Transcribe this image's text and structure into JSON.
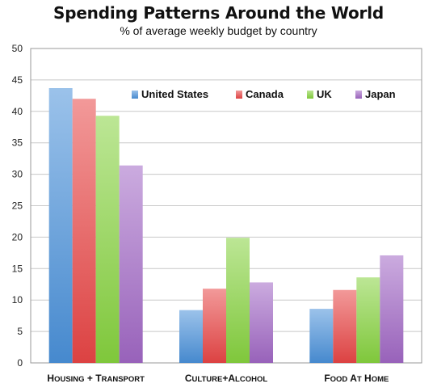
{
  "chart_data": {
    "type": "bar",
    "title": "Spending Patterns Around the World",
    "subtitle": "% of average weekly budget by country",
    "categories": [
      "Housing + Transport",
      "Culture+Alcohol",
      "Food at Home"
    ],
    "series": [
      {
        "name": "United States",
        "values": [
          43.7,
          8.4,
          8.6
        ],
        "color": "#4a90d9"
      },
      {
        "name": "Canada",
        "values": [
          42.0,
          11.8,
          11.6
        ],
        "color": "#e84545"
      },
      {
        "name": "UK",
        "values": [
          39.3,
          19.9,
          13.6
        ],
        "color": "#86d13e"
      },
      {
        "name": "Japan",
        "values": [
          31.4,
          12.8,
          17.1
        ],
        "color": "#a067c4"
      }
    ],
    "ylim": [
      0,
      50
    ],
    "yticks": [
      0,
      5,
      10,
      15,
      20,
      25,
      30,
      35,
      40,
      45,
      50
    ],
    "grid": true,
    "legend_position": "top-right, inside plot",
    "xlabel": "",
    "ylabel": ""
  }
}
